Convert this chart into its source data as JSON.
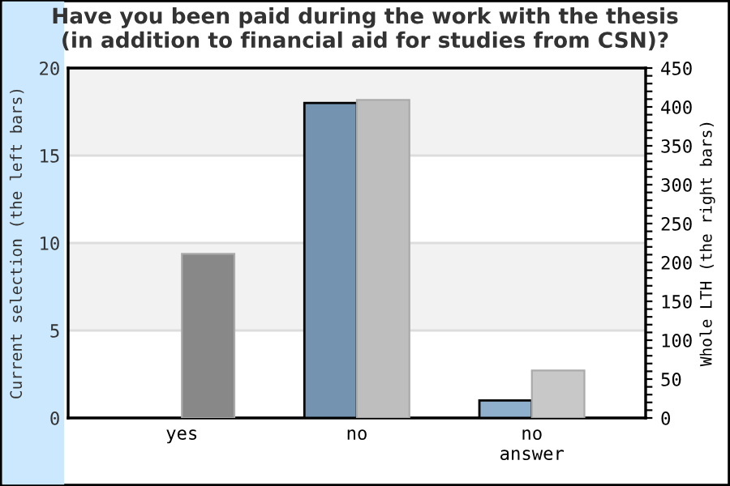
{
  "chart_data": {
    "type": "bar",
    "title": "Have you been paid during the work with the thesis\n(in addition to financial aid for studies from CSN)?",
    "categories": [
      "yes",
      "no",
      "no\nanswer"
    ],
    "ylabel": "Current selection (the left bars)",
    "y2label": "Whole LTH (the right bars)",
    "series": [
      {
        "values": [
          0,
          18,
          1
        ],
        "colors": [
          "#7393b0",
          "#7393b0",
          "#8fb0cc"
        ]
      },
      {
        "values": [
          211,
          409,
          61
        ],
        "colors": [
          "#888888",
          "#bebebe",
          "#c8c8c8"
        ],
        "axis": "y2"
      }
    ],
    "ylim": [
      0,
      20
    ],
    "yticks": [
      0,
      5,
      10,
      15,
      20
    ],
    "y2lim": [
      0,
      450
    ],
    "y2ticks": [
      0,
      {
        "value": 10,
        "label": null
      },
      {
        "value": 20,
        "label": null
      },
      {
        "value": 30,
        "label": null
      },
      {
        "value": 40,
        "label": null
      },
      50,
      {
        "value": 60,
        "label": null
      },
      {
        "value": 70,
        "label": null
      },
      {
        "value": 80,
        "label": null
      },
      {
        "value": 90,
        "label": null
      },
      100,
      {
        "value": 110,
        "label": null
      },
      {
        "value": 120,
        "label": null
      },
      {
        "value": 130,
        "label": null
      },
      {
        "value": 140,
        "label": null
      },
      150,
      {
        "value": 160,
        "label": null
      },
      {
        "value": 170,
        "label": null
      },
      {
        "value": 180,
        "label": null
      },
      {
        "value": 190,
        "label": null
      },
      200,
      {
        "value": 210,
        "label": null
      },
      {
        "value": 220,
        "label": null
      },
      {
        "value": 230,
        "label": null
      },
      {
        "value": 240,
        "label": null
      },
      250,
      {
        "value": 260,
        "label": null
      },
      {
        "value": 270,
        "label": null
      },
      {
        "value": 280,
        "label": null
      },
      {
        "value": 290,
        "label": null
      },
      300,
      {
        "value": 310,
        "label": null
      },
      {
        "value": 320,
        "label": null
      },
      {
        "value": 330,
        "label": null
      },
      {
        "value": 340,
        "label": null
      },
      350,
      {
        "value": 360,
        "label": null
      },
      {
        "value": 370,
        "label": null
      },
      {
        "value": 380,
        "label": null
      },
      {
        "value": 390,
        "label": null
      },
      400,
      {
        "value": 410,
        "label": null
      },
      {
        "value": 420,
        "label": null
      },
      {
        "value": 430,
        "label": null
      },
      {
        "value": 440,
        "label": null
      },
      450
    ],
    "bands": [
      {
        "axis": "y",
        "from": 15,
        "to": 20,
        "color": "#f2f2f2"
      },
      {
        "axis": "y",
        "from": 5,
        "to": 10,
        "color": "#f2f2f2"
      }
    ],
    "grid": "y"
  }
}
